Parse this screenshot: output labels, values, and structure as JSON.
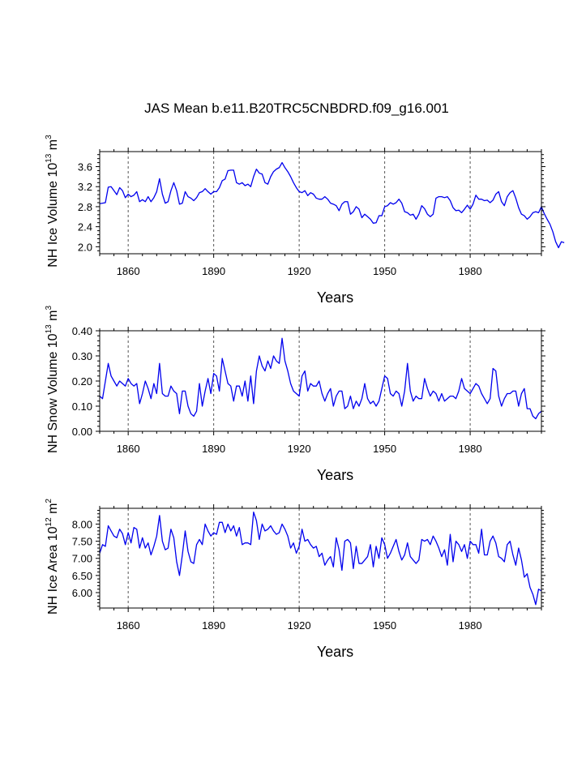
{
  "title": "JAS Mean b.e11.B20TRC5CNBDRD.f09_g16.001",
  "colors": {
    "line": "#0000ee",
    "axis": "#000000",
    "grid": "#555555"
  },
  "chart_data": [
    {
      "type": "line",
      "ylabel": {
        "main": "NH Ice Volume 10",
        "exp": "13",
        "unit": " m",
        "unit_exp": "3"
      },
      "xlabel": "Years",
      "xlim": [
        1850,
        2005
      ],
      "ylim": [
        1.86,
        3.9
      ],
      "xticks": [
        1860,
        1890,
        1920,
        1950,
        1980
      ],
      "yticks": [
        2.0,
        2.4,
        2.8,
        3.2,
        3.6
      ],
      "ytick_labels": [
        "2.0",
        "2.4",
        "2.8",
        "3.2",
        "3.6"
      ],
      "x_start": 1850,
      "values": [
        2.86,
        2.87,
        2.88,
        3.19,
        3.2,
        3.12,
        3.04,
        3.18,
        3.12,
        2.98,
        3.05,
        3.0,
        3.03,
        3.1,
        2.9,
        2.94,
        2.9,
        3.0,
        2.9,
        2.98,
        3.1,
        3.36,
        3.05,
        2.87,
        2.9,
        3.12,
        3.28,
        3.12,
        2.85,
        2.87,
        3.1,
        3.0,
        2.97,
        2.92,
        2.98,
        3.08,
        3.1,
        3.16,
        3.1,
        3.05,
        3.1,
        3.1,
        3.18,
        3.32,
        3.35,
        3.52,
        3.53,
        3.53,
        3.28,
        3.25,
        3.28,
        3.22,
        3.25,
        3.2,
        3.4,
        3.55,
        3.47,
        3.45,
        3.28,
        3.25,
        3.4,
        3.5,
        3.55,
        3.58,
        3.68,
        3.58,
        3.5,
        3.4,
        3.28,
        3.18,
        3.1,
        3.08,
        3.12,
        3.02,
        3.08,
        3.05,
        2.97,
        2.95,
        2.95,
        3.0,
        2.95,
        2.87,
        2.85,
        2.82,
        2.72,
        2.85,
        2.9,
        2.9,
        2.65,
        2.7,
        2.8,
        2.75,
        2.58,
        2.65,
        2.6,
        2.55,
        2.47,
        2.48,
        2.62,
        2.62,
        2.8,
        2.82,
        2.88,
        2.85,
        2.88,
        2.95,
        2.87,
        2.7,
        2.68,
        2.63,
        2.65,
        2.55,
        2.65,
        2.82,
        2.76,
        2.65,
        2.6,
        2.65,
        2.97,
        3.0,
        3.0,
        2.98,
        3.0,
        2.92,
        2.78,
        2.72,
        2.73,
        2.68,
        2.75,
        2.83,
        2.75,
        2.85,
        3.03,
        2.95,
        2.95,
        2.92,
        2.93,
        2.88,
        2.93,
        3.05,
        3.1,
        2.9,
        2.82,
        3.0,
        3.08,
        3.12,
        2.97,
        2.78,
        2.65,
        2.62,
        2.55,
        2.6,
        2.68,
        2.7,
        2.68,
        2.8,
        2.66,
        2.55,
        2.45,
        2.3,
        2.1,
        1.98,
        2.1,
        2.08
      ]
    },
    {
      "type": "line",
      "ylabel": {
        "main": "NH Snow Volume 10",
        "exp": "13",
        "unit": " m",
        "unit_exp": "3"
      },
      "xlabel": "Years",
      "xlim": [
        1850,
        2005
      ],
      "ylim": [
        0.0,
        0.4
      ],
      "xticks": [
        1860,
        1890,
        1920,
        1950,
        1980
      ],
      "yticks": [
        0.0,
        0.1,
        0.2,
        0.3,
        0.4
      ],
      "ytick_labels": [
        "0.00",
        "0.10",
        "0.20",
        "0.30",
        "0.40"
      ],
      "x_start": 1850,
      "values": [
        0.14,
        0.13,
        0.2,
        0.27,
        0.22,
        0.2,
        0.18,
        0.2,
        0.19,
        0.18,
        0.21,
        0.19,
        0.18,
        0.19,
        0.11,
        0.15,
        0.2,
        0.17,
        0.13,
        0.19,
        0.15,
        0.27,
        0.15,
        0.14,
        0.14,
        0.18,
        0.16,
        0.15,
        0.07,
        0.16,
        0.16,
        0.1,
        0.07,
        0.06,
        0.08,
        0.19,
        0.1,
        0.16,
        0.21,
        0.15,
        0.23,
        0.22,
        0.16,
        0.29,
        0.24,
        0.19,
        0.18,
        0.12,
        0.18,
        0.18,
        0.14,
        0.2,
        0.12,
        0.22,
        0.11,
        0.24,
        0.3,
        0.26,
        0.24,
        0.28,
        0.25,
        0.3,
        0.28,
        0.27,
        0.37,
        0.28,
        0.24,
        0.19,
        0.16,
        0.15,
        0.14,
        0.22,
        0.24,
        0.16,
        0.19,
        0.18,
        0.18,
        0.2,
        0.15,
        0.12,
        0.15,
        0.17,
        0.1,
        0.14,
        0.16,
        0.16,
        0.09,
        0.1,
        0.14,
        0.09,
        0.12,
        0.1,
        0.13,
        0.19,
        0.13,
        0.11,
        0.12,
        0.1,
        0.12,
        0.17,
        0.22,
        0.21,
        0.15,
        0.14,
        0.16,
        0.15,
        0.1,
        0.16,
        0.27,
        0.16,
        0.12,
        0.14,
        0.13,
        0.13,
        0.21,
        0.17,
        0.14,
        0.16,
        0.15,
        0.12,
        0.15,
        0.12,
        0.13,
        0.14,
        0.14,
        0.13,
        0.16,
        0.21,
        0.17,
        0.16,
        0.15,
        0.17,
        0.19,
        0.18,
        0.15,
        0.13,
        0.11,
        0.13,
        0.25,
        0.24,
        0.14,
        0.1,
        0.13,
        0.15,
        0.15,
        0.16,
        0.16,
        0.1,
        0.15,
        0.17,
        0.09,
        0.09,
        0.06,
        0.05,
        0.07,
        0.08
      ]
    },
    {
      "type": "line",
      "ylabel": {
        "main": "NH Ice Area 10",
        "exp": "12",
        "unit": " m",
        "unit_exp": "2"
      },
      "xlabel": "Years",
      "xlim": [
        1850,
        2005
      ],
      "ylim": [
        5.55,
        8.46
      ],
      "xticks": [
        1860,
        1890,
        1920,
        1950,
        1980
      ],
      "yticks": [
        6.0,
        6.5,
        7.0,
        7.5,
        8.0
      ],
      "ytick_labels": [
        "6.00",
        "6.50",
        "7.00",
        "7.50",
        "8.00"
      ],
      "x_start": 1850,
      "values": [
        7.15,
        7.4,
        7.35,
        7.95,
        7.8,
        7.65,
        7.6,
        7.85,
        7.72,
        7.4,
        7.75,
        7.45,
        7.9,
        7.85,
        7.3,
        7.6,
        7.3,
        7.45,
        7.1,
        7.35,
        7.65,
        8.25,
        7.5,
        7.25,
        7.3,
        7.85,
        7.6,
        6.9,
        6.5,
        7.1,
        7.8,
        7.2,
        6.9,
        6.85,
        7.4,
        7.55,
        7.4,
        8.0,
        7.8,
        7.65,
        7.75,
        7.7,
        8.05,
        8.05,
        7.75,
        8.0,
        7.8,
        7.95,
        7.65,
        7.9,
        7.4,
        7.45,
        7.45,
        7.4,
        8.35,
        8.1,
        7.55,
        8.0,
        7.8,
        7.85,
        7.95,
        7.8,
        7.7,
        7.75,
        8.0,
        7.85,
        7.65,
        7.3,
        7.45,
        7.15,
        7.35,
        7.85,
        7.5,
        7.55,
        7.4,
        7.3,
        7.35,
        7.05,
        7.15,
        6.8,
        6.95,
        7.05,
        6.75,
        7.6,
        7.25,
        6.65,
        7.5,
        7.55,
        7.45,
        6.7,
        7.35,
        6.85,
        6.85,
        6.95,
        7.05,
        7.4,
        6.75,
        7.35,
        7.0,
        7.6,
        7.4,
        7.0,
        7.15,
        7.35,
        7.55,
        7.2,
        6.95,
        7.1,
        7.45,
        7.05,
        6.95,
        6.85,
        6.95,
        7.55,
        7.5,
        7.55,
        7.4,
        7.65,
        7.5,
        7.3,
        7.05,
        7.25,
        6.8,
        7.7,
        6.9,
        7.5,
        7.4,
        7.2,
        7.4,
        7.0,
        7.5,
        7.4,
        7.4,
        7.15,
        7.85,
        7.1,
        7.1,
        7.5,
        7.65,
        7.45,
        7.05,
        7.0,
        6.9,
        7.4,
        7.5,
        7.1,
        6.8,
        7.3,
        6.95,
        6.45,
        6.55,
        6.15,
        5.95,
        5.65,
        6.1,
        6.05
      ]
    }
  ]
}
